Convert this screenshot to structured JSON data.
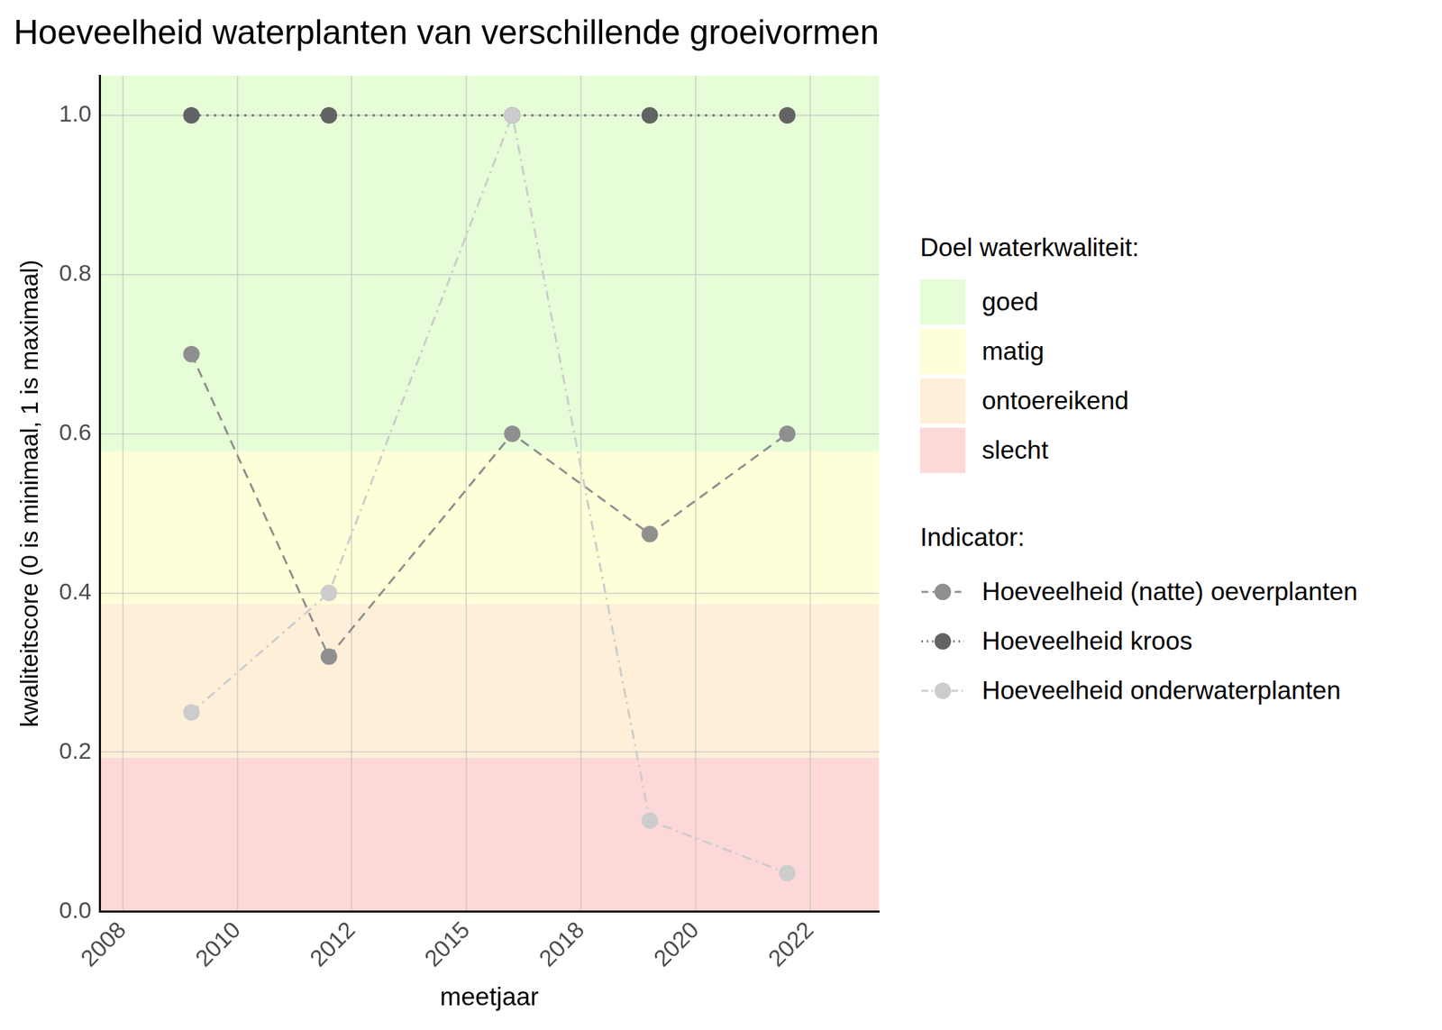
{
  "chart_data": {
    "type": "line",
    "title": "Hoeveelheid waterplanten van verschillende groeivormen",
    "x_label": "meetjaar",
    "y_label": "kwaliteitscore (0 is minimaal, 1 is maximaal)",
    "x": [
      2009,
      2012,
      2016,
      2019,
      2022
    ],
    "series": [
      {
        "name": "Hoeveelheid (natte) oeverplanten",
        "color": "#8f8f8f",
        "marker": "circle",
        "line_style": "dashed",
        "values": [
          0.7,
          0.32,
          0.6,
          0.474,
          0.6
        ]
      },
      {
        "name": "Hoeveelheid kroos",
        "color": "#636363",
        "marker": "circle",
        "line_style": "dotted",
        "values": [
          1.0,
          1.0,
          1.0,
          1.0,
          1.0
        ]
      },
      {
        "name": "Hoeveelheid onderwaterplanten",
        "color": "#cccccc",
        "marker": "circle",
        "line_style": "dashdot",
        "values": [
          0.25,
          0.4,
          1.0,
          0.114,
          0.048
        ]
      }
    ],
    "legend_title": "Indicator:",
    "bands_title": "Doel waterkwaliteit:",
    "bands": [
      {
        "name": "goed",
        "color": "#e6fdd8",
        "from": 0.578,
        "to": 1.05
      },
      {
        "name": "matig",
        "color": "#fefed8",
        "from": 0.386,
        "to": 0.578
      },
      {
        "name": "ontoereikend",
        "color": "#feefd8",
        "from": 0.193,
        "to": 0.386
      },
      {
        "name": "slecht",
        "color": "#fdd8d8",
        "from": 0,
        "to": 0.193
      }
    ],
    "xlim": [
      2007,
      2024
    ],
    "xticks": [
      {
        "value": 2007.5,
        "label": "2008"
      },
      2010,
      {
        "value": 2012.5,
        "label": "2012"
      },
      2015,
      {
        "value": 2017.5,
        "label": "2018"
      },
      2020,
      {
        "value": 2022.5,
        "label": "2022"
      }
    ],
    "ylim": [
      0,
      1.05
    ],
    "yticks": [
      {
        "value": 0,
        "label": "0.0"
      },
      0.2,
      0.4,
      0.6,
      0.8,
      {
        "value": 1,
        "label": "1.0"
      }
    ],
    "grid": true,
    "legend": "right"
  }
}
